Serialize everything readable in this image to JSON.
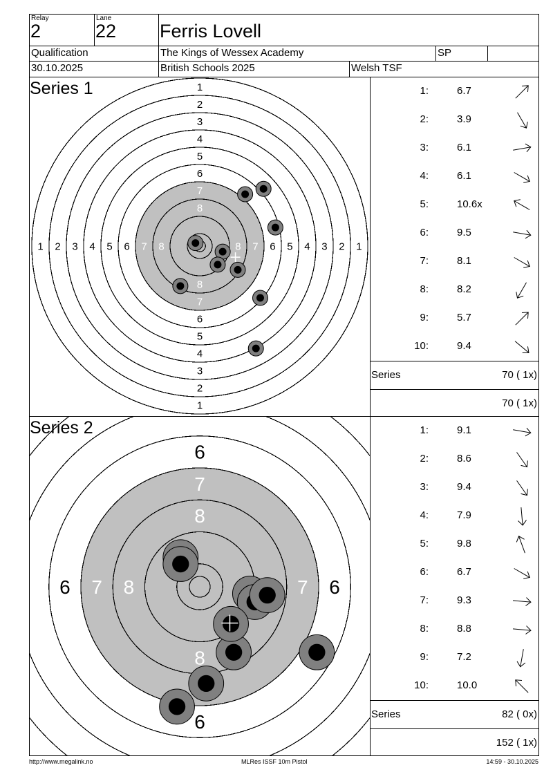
{
  "header": {
    "relay_label": "Relay",
    "relay": "2",
    "lane_label": "Lane",
    "lane": "22",
    "name": "Ferris Lovell",
    "stage": "Qualification",
    "club": "The Kings of Wessex Academy",
    "class": "SP",
    "class2": "",
    "date": "30.10.2025",
    "competition": "British Schools 2025",
    "association": "Welsh TSF"
  },
  "ring_labels": [
    "1",
    "2",
    "3",
    "4",
    "5",
    "6",
    "7",
    "8"
  ],
  "series": [
    {
      "title": "Series 1",
      "scale_note": "full",
      "shots": [
        {
          "n": "1:",
          "value": "6.7",
          "dir": -45,
          "x": 21,
          "y": 24
        },
        {
          "n": "2:",
          "value": "3.9",
          "dir": 60,
          "x": 29.5,
          "y": 26.5
        },
        {
          "n": "3:",
          "value": "6.1",
          "dir": -10,
          "x": 35,
          "y": 8.6
        },
        {
          "n": "4:",
          "value": "6.1",
          "dir": 30,
          "x": 28,
          "y": -24
        },
        {
          "n": "5:",
          "value": "10.6x",
          "dir": -150,
          "x": -2,
          "y": 1.4
        },
        {
          "n": "6:",
          "value": "9.5",
          "dir": 10,
          "x": 10.6,
          "y": -2.6
        },
        {
          "n": "7:",
          "value": "8.1",
          "dir": 30,
          "x": 17.6,
          "y": -11
        },
        {
          "n": "8:",
          "value": "8.2",
          "dir": 120,
          "x": -9,
          "y": -18.5
        },
        {
          "n": "9:",
          "value": "5.7",
          "dir": -45,
          "x": 26,
          "y": -47.4
        },
        {
          "n": "10:",
          "value": "9.4",
          "dir": 40,
          "x": 8.3,
          "y": -8.6
        }
      ],
      "series_label": "Series",
      "series_total": "70 ( 1x)",
      "running_total": "70 ( 1x)"
    },
    {
      "title": "Series 2",
      "scale_note": "zoom",
      "shots": [
        {
          "n": "1:",
          "value": "9.1",
          "dir": 10,
          "x": 12.6,
          "y": -1.7
        },
        {
          "n": "2:",
          "value": "8.6",
          "dir": 55,
          "x": -4.8,
          "y": 7.4
        },
        {
          "n": "3:",
          "value": "9.4",
          "dir": 55,
          "x": -4.8,
          "y": 5.7
        },
        {
          "n": "4:",
          "value": "7.9",
          "dir": 85,
          "x": 29.3,
          "y": -16.4
        },
        {
          "n": "5:",
          "value": "9.8",
          "dir": -110,
          "x": 13.8,
          "y": -3.8
        },
        {
          "n": "6:",
          "value": "6.7",
          "dir": 30,
          "x": -5.7,
          "y": -30
        },
        {
          "n": "7:",
          "value": "9.3",
          "dir": 5,
          "x": 16.9,
          "y": -2.1
        },
        {
          "n": "8:",
          "value": "8.8",
          "dir": 5,
          "x": 8.5,
          "y": -16.4
        },
        {
          "n": "9:",
          "value": "7.2",
          "dir": 100,
          "x": 1.6,
          "y": -24.2
        },
        {
          "n": "10:",
          "value": "10.0",
          "dir": -135,
          "x": 7.8,
          "y": -9.3
        }
      ],
      "series_label": "Series",
      "series_total": "82 ( 0x)",
      "running_total": "152 ( 1x)"
    }
  ],
  "footer": {
    "url": "http://www.megalink.no",
    "software": "MLRes ISSF 10m Pistol",
    "timestamp": "14:59 - 30.10.2025"
  },
  "colors": {
    "black_area": "#c0c0c0",
    "shot_outer": "#808080",
    "shot_inner": "#000000"
  }
}
